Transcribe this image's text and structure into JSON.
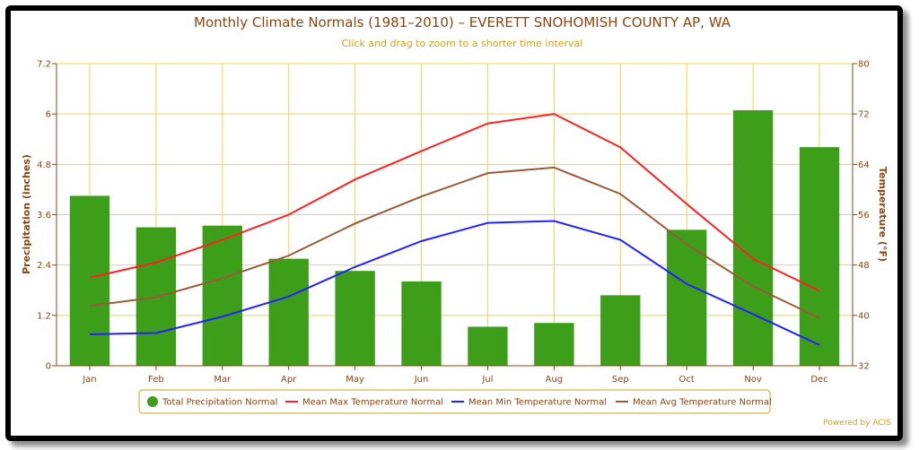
{
  "chart_data": {
    "type": "bar",
    "title": "Monthly Climate Normals (1981–2010) – EVERETT SNOHOMISH COUNTY AP, WA",
    "subtitle": "Click and drag to zoom to a shorter time interval",
    "categories": [
      "Jan",
      "Feb",
      "Mar",
      "Apr",
      "May",
      "Jun",
      "Jul",
      "Aug",
      "Sep",
      "Oct",
      "Nov",
      "Dec"
    ],
    "ylabel_left": "Precipitation (inches)",
    "ylabel_right": "Temperature (°F)",
    "ylim_left": [
      0,
      7.2
    ],
    "ylim_right": [
      32,
      80
    ],
    "left_ticks": [
      "0",
      "1.2",
      "2.4",
      "3.6",
      "4.8",
      "6",
      "7.2"
    ],
    "right_ticks": [
      "32",
      "40",
      "48",
      "56",
      "64",
      "72",
      "80"
    ],
    "grid": true,
    "legend_position": "bottom",
    "credit": "Powered by ACIS",
    "series": [
      {
        "name": "Total Precipitation Normal",
        "kind": "bar",
        "axis": "left",
        "color": "#3d9e1a",
        "values": [
          4.05,
          3.3,
          3.34,
          2.55,
          2.26,
          2.01,
          0.93,
          1.02,
          1.68,
          3.24,
          6.09,
          5.21
        ]
      },
      {
        "name": "Mean Max Temperature Normal",
        "kind": "line",
        "axis": "right",
        "color": "#ff2222",
        "values": [
          46.0,
          48.4,
          52.0,
          56.0,
          61.6,
          66.1,
          70.5,
          72.0,
          66.7,
          57.7,
          49.0,
          43.9
        ]
      },
      {
        "name": "Mean Min Temperature Normal",
        "kind": "line",
        "axis": "right",
        "color": "#2222ff",
        "values": [
          37.0,
          37.2,
          39.8,
          43.0,
          47.7,
          51.8,
          54.7,
          55.0,
          52.0,
          45.0,
          40.2,
          35.3
        ]
      },
      {
        "name": "Mean Avg Temperature Normal",
        "kind": "line",
        "axis": "right",
        "color": "#9a5a38",
        "values": [
          41.5,
          42.9,
          45.9,
          49.5,
          54.6,
          58.9,
          62.6,
          63.5,
          59.3,
          51.3,
          44.6,
          39.6
        ]
      }
    ]
  }
}
